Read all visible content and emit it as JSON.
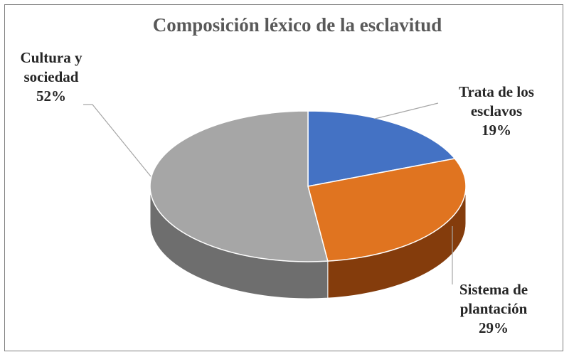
{
  "chart_data": {
    "type": "pie",
    "title": "Composición léxico de la esclavitud",
    "slices": [
      {
        "name": "Trata de los esclavos",
        "label_lines": [
          "Trata de los",
          "esclavos",
          "19%"
        ],
        "value": 19,
        "color": "#4472c4",
        "side_color": "#2f528f"
      },
      {
        "name": "Sistema de plantación",
        "label_lines": [
          "Sistema de",
          "plantación",
          "29%"
        ],
        "value": 29,
        "color": "#e07420",
        "side_color": "#843c0c"
      },
      {
        "name": "Cultura y sociedad",
        "label_lines": [
          "Cultura y",
          "sociedad",
          "52%"
        ],
        "value": 52,
        "color": "#a6a6a6",
        "side_color": "#6e6e6e"
      }
    ],
    "three_d": true,
    "legend": "none"
  }
}
